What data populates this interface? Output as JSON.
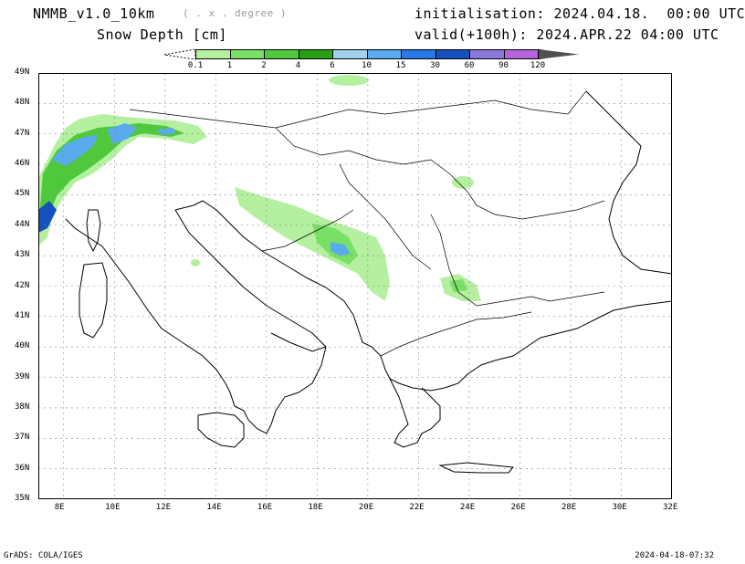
{
  "header": {
    "model": "NMMB_v1.0_10km",
    "resolution_note": "( . x . degree )",
    "parameter": "Snow Depth [cm]",
    "initialisation": "initialisation: 2024.04.18.  00:00 UTC",
    "valid": "valid(+100h): 2024.APR.22 04:00 UTC"
  },
  "legend": {
    "labels": [
      "0.1",
      "1",
      "2",
      "4",
      "6",
      "10",
      "15",
      "30",
      "60",
      "90",
      "120"
    ],
    "colors": [
      "#b4f0a0",
      "#78e064",
      "#50c83c",
      "#28a014",
      "#a0d2f0",
      "#5aaaf0",
      "#2878e6",
      "#1450be",
      "#8c78dc",
      "#b464dc",
      "#505050"
    ]
  },
  "map": {
    "lat_labels": [
      "49N",
      "48N",
      "47N",
      "46N",
      "45N",
      "44N",
      "43N",
      "42N",
      "41N",
      "40N",
      "39N",
      "38N",
      "37N",
      "36N",
      "35N"
    ],
    "lon_labels": [
      "8E",
      "10E",
      "12E",
      "14E",
      "16E",
      "18E",
      "20E",
      "22E",
      "24E",
      "26E",
      "28E",
      "30E",
      "32E"
    ],
    "lon_range": [
      7,
      32
    ],
    "lat_range": [
      35,
      49
    ]
  },
  "footer": {
    "left": "GrADS: COLA/IGES",
    "right": "2024-04-18-07:32"
  }
}
